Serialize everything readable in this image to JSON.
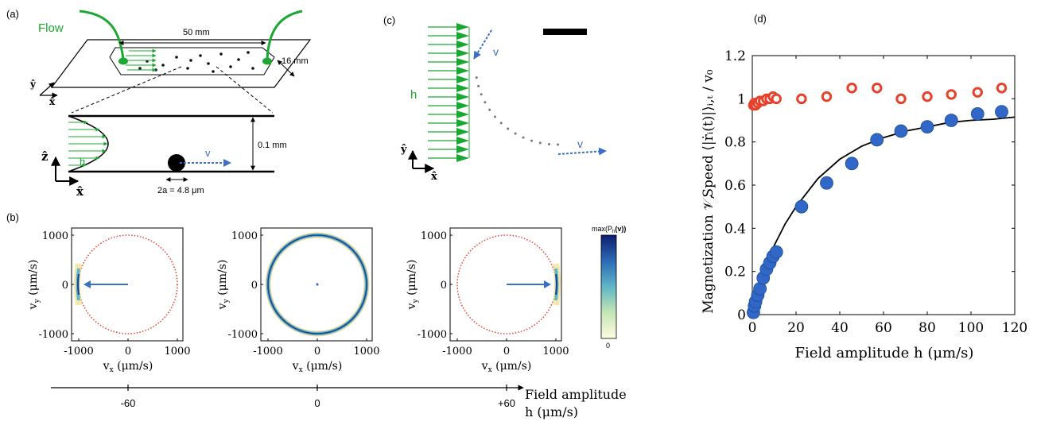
{
  "colors": {
    "flow_green": "#1aa832",
    "vel_blue": "#3a6fc4",
    "ref_red": "#e8412b",
    "marker_blue": "#3167c6",
    "marker_red": "#e8412b"
  },
  "panel_a": {
    "label": "(a)",
    "flow": "Flow",
    "width": "50 mm",
    "depth": "16 mm",
    "axis_y": "ŷ",
    "axis_x": "x̂",
    "axis_z": "ẑ",
    "axis_x2": "x̂",
    "h": "h",
    "v": "v",
    "height": "0.1 mm",
    "diameter": "2a = 4.8 μm"
  },
  "panel_b": {
    "label": "(b)",
    "colorbar_top": "max(P",
    "colorbar_sub": "h",
    "colorbar_tail": "(v))",
    "colorbar_bottom": "0",
    "ylabel": "v",
    "ylabel_sub": "y",
    "ylabel_unit": " (μm/s)",
    "xlabel": "v",
    "xlabel_sub": "x",
    "xlabel_unit": " (μm/s)",
    "yticks": [
      "1000",
      "0",
      "-1000"
    ],
    "xticks": [
      "-1000",
      "0",
      "1000"
    ],
    "axis_ticks": [
      "-60",
      "0",
      "+60"
    ],
    "axis_title_1": "Field amplitude",
    "axis_title_2": "h (μm/s)"
  },
  "panel_c": {
    "label": "(c)",
    "h": "h",
    "v1": "v",
    "v2": "v",
    "axis_y": "ŷ",
    "axis_x": "x̂"
  },
  "panel_d": {
    "label": "(d)",
    "xlabel": "Field amplitude h (μm/s)",
    "ylabel_left": "Magnetization 𝒱,",
    "ylabel_right": "Speed ⟨|ṙᵢ(t)|⟩ᵢ,ₜ / v₀",
    "xticks": [
      "0",
      "20",
      "40",
      "60",
      "80",
      "100",
      "120"
    ],
    "yticks": [
      "0",
      "0.2",
      "0.4",
      "0.6",
      "0.8",
      "1",
      "1.2"
    ]
  },
  "chart_data": {
    "type": "scatter",
    "xlim": [
      0,
      120
    ],
    "ylim": [
      0,
      1.2
    ],
    "series": [
      {
        "marker": "filled-circle",
        "color": "#3167c6",
        "x": [
          0.5,
          1,
          1.5,
          2.5,
          3.5,
          5,
          6.5,
          8,
          9.5,
          11,
          22.5,
          34,
          45.5,
          57,
          68,
          80,
          91,
          103,
          114
        ],
        "y": [
          0.01,
          0.04,
          0.06,
          0.09,
          0.12,
          0.17,
          0.21,
          0.24,
          0.27,
          0.29,
          0.5,
          0.61,
          0.7,
          0.81,
          0.85,
          0.87,
          0.9,
          0.93,
          0.94
        ]
      },
      {
        "marker": "open-circle",
        "color": "#e8412b",
        "x": [
          0.5,
          1,
          1.5,
          2.5,
          3.5,
          5,
          6.5,
          8,
          9.5,
          11,
          22.5,
          34,
          45.5,
          57,
          68,
          80,
          91,
          103,
          114
        ],
        "y": [
          0.97,
          0.98,
          0.97,
          0.98,
          0.99,
          0.99,
          1.0,
          1.0,
          1.01,
          1.0,
          1.0,
          1.01,
          1.05,
          1.05,
          1.0,
          1.01,
          1.02,
          1.03,
          1.05
        ]
      },
      {
        "marker": "line",
        "color": "#000000",
        "x": [
          0,
          5,
          10,
          15,
          20,
          30,
          40,
          50,
          60,
          70,
          80,
          90,
          100,
          110,
          120
        ],
        "y": [
          0,
          0.18,
          0.32,
          0.42,
          0.5,
          0.63,
          0.72,
          0.78,
          0.82,
          0.85,
          0.87,
          0.89,
          0.9,
          0.905,
          0.915
        ]
      }
    ]
  }
}
